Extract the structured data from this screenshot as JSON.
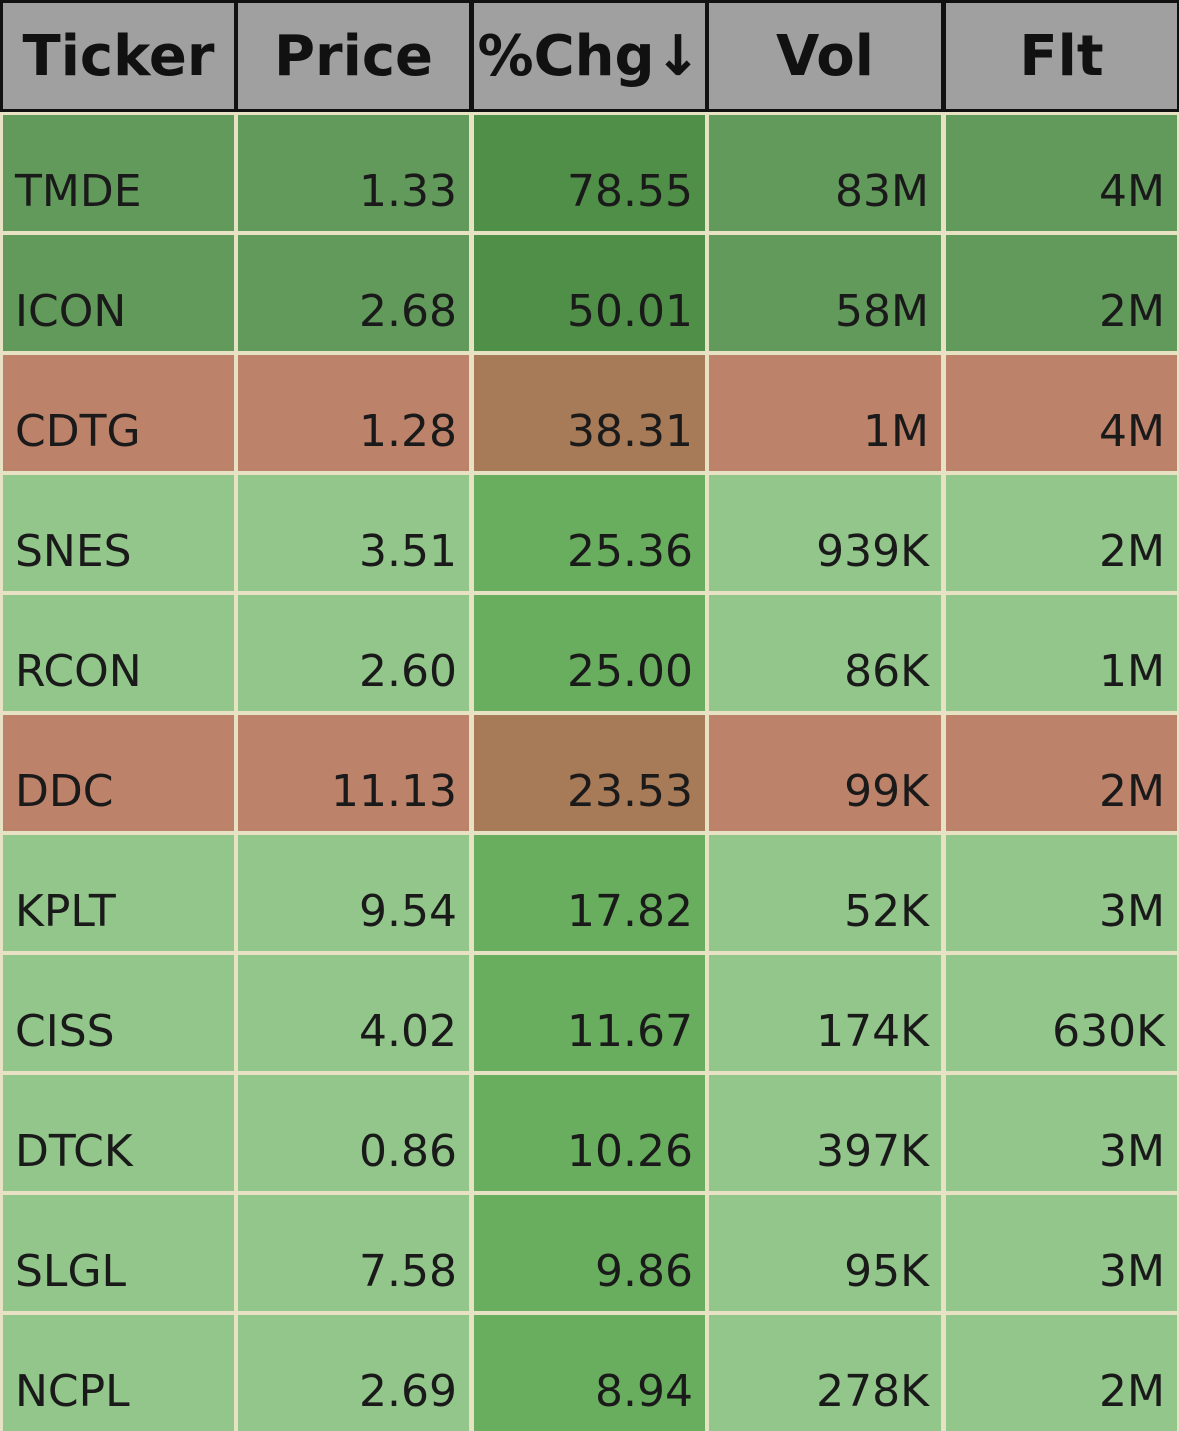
{
  "table": {
    "headers": [
      "Ticker",
      "Price",
      "%Chg↓",
      "Vol",
      "Flt"
    ],
    "rows": [
      {
        "cells": [
          "TMDE",
          "1.33",
          "78.55",
          "83M",
          "4M"
        ],
        "fill": "#629a5b",
        "accent": "#508f48"
      },
      {
        "cells": [
          "ICON",
          "2.68",
          "50.01",
          "58M",
          "2M"
        ],
        "fill": "#629a5b",
        "accent": "#508f48"
      },
      {
        "cells": [
          "CDTG",
          "1.28",
          "38.31",
          "1M",
          "4M"
        ],
        "fill": "#bd826a",
        "accent": "#a77a58"
      },
      {
        "cells": [
          "SNES",
          "3.51",
          "25.36",
          "939K",
          "2M"
        ],
        "fill": "#92c68a",
        "accent": "#69ae5e"
      },
      {
        "cells": [
          "RCON",
          "2.60",
          "25.00",
          "86K",
          "1M"
        ],
        "fill": "#92c68a",
        "accent": "#69ae5e"
      },
      {
        "cells": [
          "DDC",
          "11.13",
          "23.53",
          "99K",
          "2M"
        ],
        "fill": "#bd826a",
        "accent": "#a77a58"
      },
      {
        "cells": [
          "KPLT",
          "9.54",
          "17.82",
          "52K",
          "3M"
        ],
        "fill": "#92c68a",
        "accent": "#69ae5e"
      },
      {
        "cells": [
          "CISS",
          "4.02",
          "11.67",
          "174K",
          "630K"
        ],
        "fill": "#92c68a",
        "accent": "#69ae5e"
      },
      {
        "cells": [
          "DTCK",
          "0.86",
          "10.26",
          "397K",
          "3M"
        ],
        "fill": "#92c68a",
        "accent": "#69ae5e"
      },
      {
        "cells": [
          "SLGL",
          "7.58",
          "9.86",
          "95K",
          "3M"
        ],
        "fill": "#92c68a",
        "accent": "#69ae5e"
      },
      {
        "cells": [
          "NCPL",
          "2.69",
          "8.94",
          "278K",
          "2M"
        ],
        "fill": "#92c68a",
        "accent": "#69ae5e"
      }
    ]
  }
}
